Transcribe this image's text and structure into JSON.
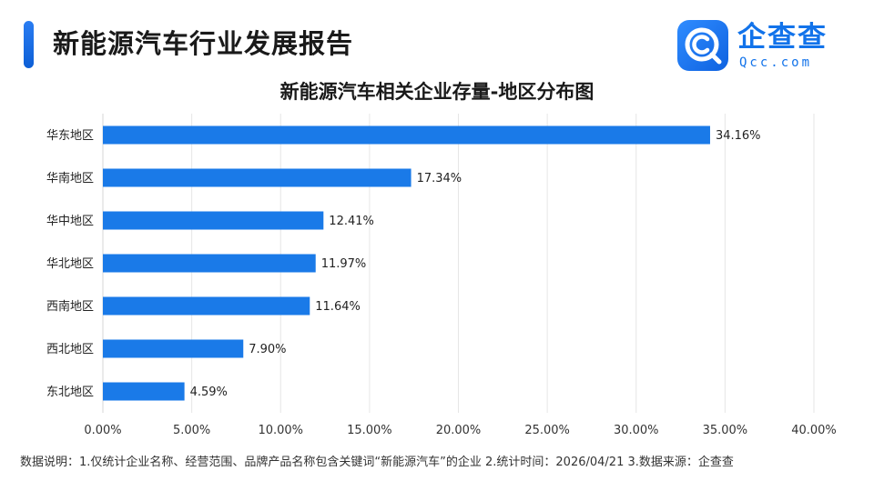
{
  "header": {
    "title": "新能源汽车行业发展报告",
    "logo_name": "企查查",
    "logo_domain": "Qcc.com",
    "logo_icon": "magnifier-c-icon",
    "accent_color": "#1a7ae8"
  },
  "chart_data": {
    "type": "bar",
    "orientation": "horizontal",
    "title": "新能源汽车相关企业存量-地区分布图",
    "categories": [
      "华东地区",
      "华南地区",
      "华中地区",
      "华北地区",
      "西南地区",
      "西北地区",
      "东北地区"
    ],
    "values": [
      34.16,
      17.34,
      12.41,
      11.97,
      11.64,
      7.9,
      4.59
    ],
    "value_labels": [
      "34.16%",
      "17.34%",
      "12.41%",
      "11.97%",
      "11.64%",
      "7.90%",
      "4.59%"
    ],
    "xlim": [
      0,
      40
    ],
    "x_ticks": [
      0,
      5,
      10,
      15,
      20,
      25,
      30,
      35,
      40
    ],
    "x_tick_labels": [
      "0.00%",
      "5.00%",
      "10.00%",
      "15.00%",
      "20.00%",
      "25.00%",
      "30.00%",
      "35.00%",
      "40.00%"
    ],
    "grid": true,
    "bar_color": "#1a7ae8",
    "xlabel": "",
    "ylabel": ""
  },
  "footnote": "数据说明：1.仅统计企业名称、经营范围、品牌产品名称包含关键词“新能源汽车”的企业   2.统计时间：2026/04/21    3.数据来源：企查查"
}
